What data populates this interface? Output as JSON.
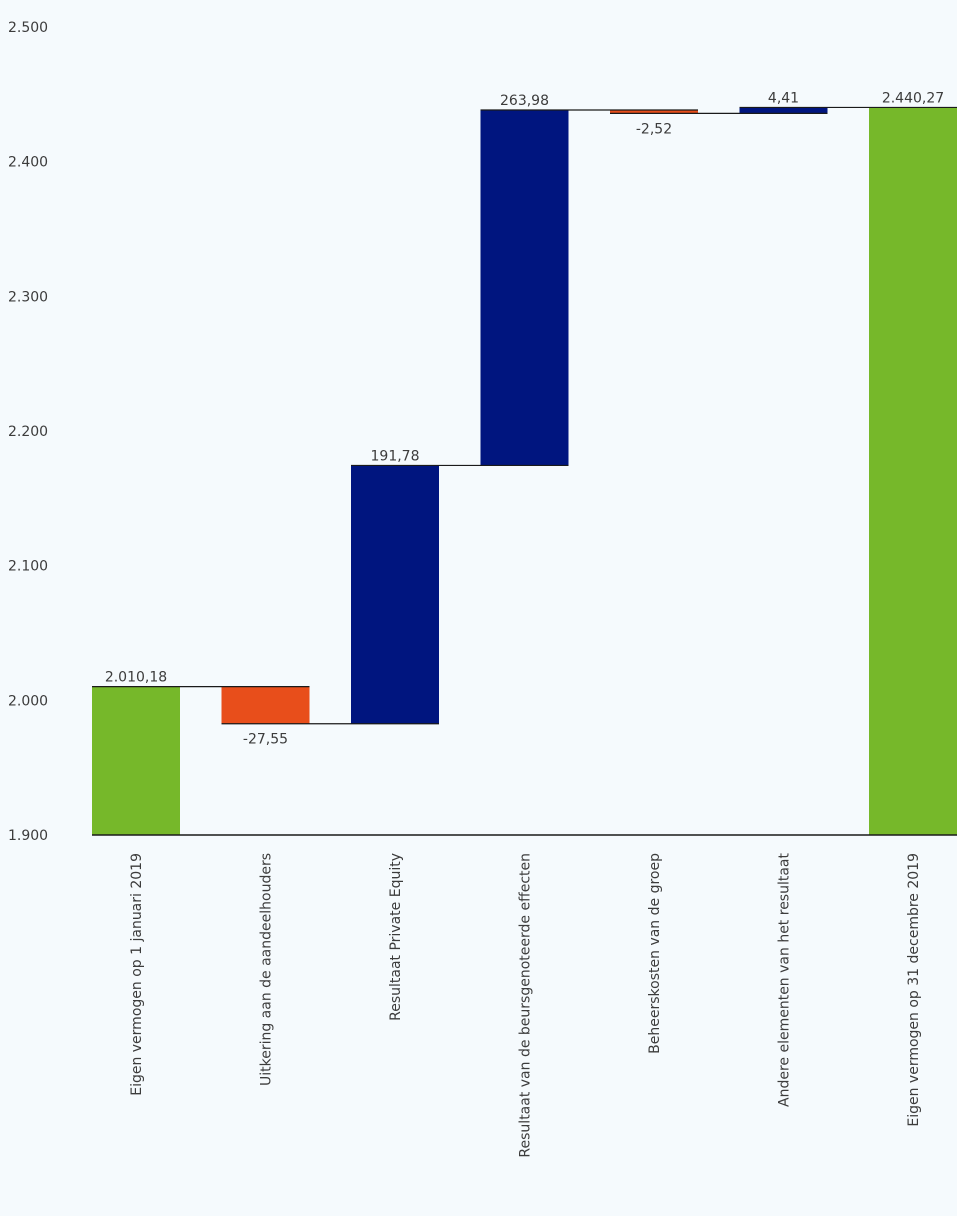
{
  "chart_data": {
    "type": "bar",
    "subtype": "waterfall",
    "title": "",
    "xlabel": "",
    "ylabel": "",
    "ylim": [
      1900,
      2500
    ],
    "yticks": [
      1900,
      2000,
      2100,
      2200,
      2300,
      2400,
      2500
    ],
    "ytick_labels": [
      "1.900",
      "2.000",
      "2.100",
      "2.200",
      "2.300",
      "2.400",
      "2.500"
    ],
    "grid": false,
    "legend": "none",
    "categories": [
      "Eigen vermogen op 1 januari 2019",
      "Uitkering aan de aandeelhouders",
      "Resultaat Private Equity",
      "Resultaat van de beursgenoteerde effecten",
      "Beheerskosten van de groep",
      "Andere elementen van het resultaat",
      "Eigen vermogen op 31 decembre 2019"
    ],
    "values": [
      2010.18,
      -27.55,
      191.78,
      263.98,
      -2.52,
      4.41,
      2440.27
    ],
    "kinds": [
      "total",
      "change",
      "change",
      "change",
      "change",
      "change",
      "total"
    ],
    "value_labels": [
      "2.010,18",
      "-27,55",
      "191,78",
      "263,98",
      "-2,52",
      "4,41",
      "2.440,27"
    ],
    "colors": {
      "total": "#76B82A",
      "increase": "#00157F",
      "decrease": "#E84E1B",
      "connector": "#1A1A1A",
      "axis": "#1A1A1A"
    }
  }
}
